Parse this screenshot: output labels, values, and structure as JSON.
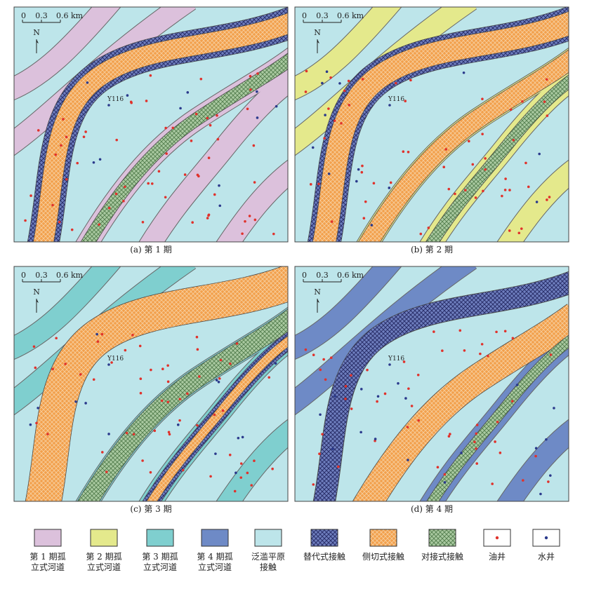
{
  "panels": [
    {
      "caption": "(a) 第 1 期",
      "well_label": "Y116"
    },
    {
      "caption": "(b) 第 2 期",
      "well_label": "Y116"
    },
    {
      "caption": "(c) 第 3 期",
      "well_label": "Y116"
    },
    {
      "caption": "(d) 第 4 期",
      "well_label": "Y116"
    }
  ],
  "scale_bar": {
    "labels": [
      "0",
      "0.3",
      "0.6 km"
    ],
    "north": "N"
  },
  "legend": [
    {
      "lines": [
        "第 1 期孤",
        "立式河道"
      ]
    },
    {
      "lines": [
        "第 2 期孤",
        "立式河道"
      ]
    },
    {
      "lines": [
        "第 3 期孤",
        "立式河道"
      ]
    },
    {
      "lines": [
        "第 4 期孤",
        "立式河道"
      ]
    },
    {
      "lines": [
        "泛滥平原",
        "接触"
      ]
    },
    {
      "lines": [
        "替代式接触"
      ]
    },
    {
      "lines": [
        "侧切式接触"
      ]
    },
    {
      "lines": [
        "对接式接触"
      ]
    },
    {
      "lines": [
        "油井"
      ]
    },
    {
      "lines": [
        "水井"
      ]
    }
  ]
}
